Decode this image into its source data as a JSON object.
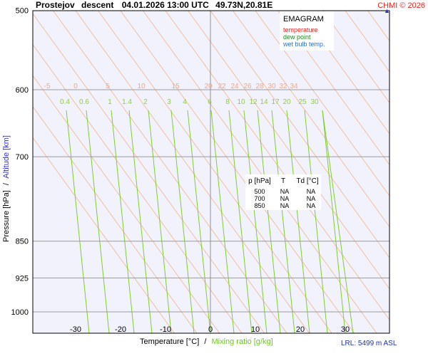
{
  "header": {
    "station": "Prostejov",
    "mode": "descent",
    "datetime": "04.01.2026 13:00 UTC",
    "coords": "49.73N,20.81E",
    "credit": "CHMI © 2026"
  },
  "legend": {
    "title": "EMAGRAM",
    "items": [
      {
        "label": "temperature",
        "color": "#e8241e"
      },
      {
        "label": "dew point",
        "color": "#1a8a1a"
      },
      {
        "label": "wet bulb temp.",
        "color": "#2f6fd6"
      }
    ]
  },
  "table": {
    "headers": [
      "p [hPa]",
      "T",
      "Td [°C]"
    ],
    "rows": [
      [
        "500",
        "NA",
        "NA"
      ],
      [
        "700",
        "NA",
        "NA"
      ],
      [
        "850",
        "NA",
        "NA"
      ]
    ]
  },
  "axes": {
    "y_label_pressure": "Pressure [hPa]",
    "y_label_sep": "/",
    "y_label_altitude": "Altitude [km]",
    "x_label_temp": "Temperature [°C]",
    "x_label_sep": "/",
    "x_label_mixing": "Mixing ratio [g/kg]"
  },
  "lrl": "LRL: 5499 m ASL",
  "colors": {
    "plot_bg": "#f2f2fd",
    "isobar": "#9a9a9a",
    "dry_adiabat": "#f0b38a",
    "mixing_line": "#7fcf2a",
    "mixing_label": "#8ccf3a",
    "dry_label": "#f4a580",
    "zero_line": "#909090",
    "legend_temp": "#e8241e",
    "legend_dew": "#1a8a1a",
    "legend_wb": "#2f6fd6"
  },
  "chart_data": {
    "type": "emagram",
    "title": "",
    "xlabel": "Temperature [°C] / Mixing ratio [g/kg]",
    "ylabel": "Pressure [hPa] / Altitude [km]",
    "x_ticks": [
      -30,
      -20,
      -10,
      0,
      10,
      20,
      30
    ],
    "x_range": [
      -39,
      39
    ],
    "y_ticks": [
      500,
      600,
      700,
      850,
      925,
      1000
    ],
    "y_range": [
      500,
      1050
    ],
    "y_scale": "log",
    "dry_adiabat_labels": [
      -5,
      0,
      5,
      10,
      15,
      20,
      22,
      24,
      26,
      28,
      30,
      32,
      34
    ],
    "mixing_ratio_labels": [
      0.4,
      0.6,
      1,
      1.4,
      2,
      3,
      4,
      6,
      8,
      10,
      12,
      14,
      17,
      20,
      25,
      30
    ],
    "series": []
  }
}
